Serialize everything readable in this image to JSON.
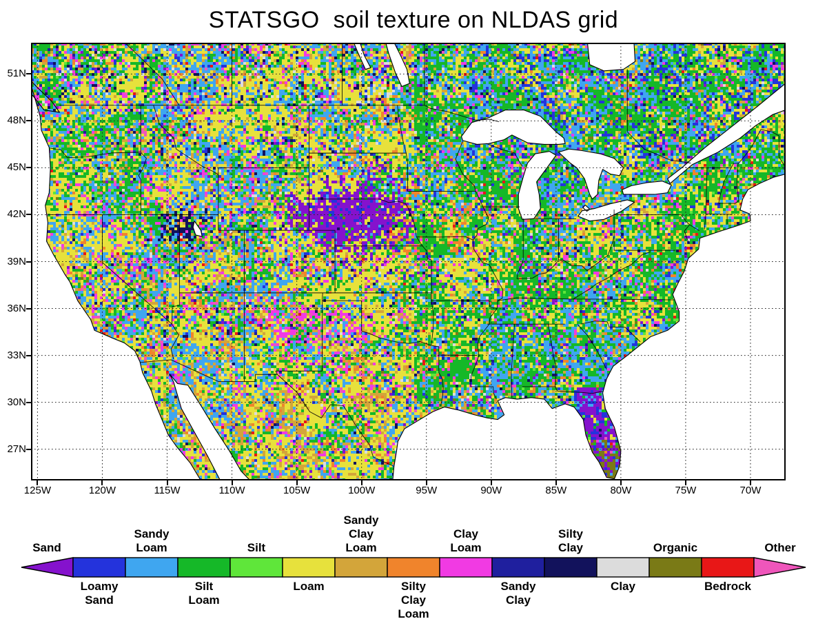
{
  "title": "STATSGO  soil texture on NLDAS grid",
  "axes": {
    "lat_ticks": [
      {
        "label": "51N",
        "value": 51
      },
      {
        "label": "48N",
        "value": 48
      },
      {
        "label": "45N",
        "value": 45
      },
      {
        "label": "42N",
        "value": 42
      },
      {
        "label": "39N",
        "value": 39
      },
      {
        "label": "36N",
        "value": 36
      },
      {
        "label": "33N",
        "value": 33
      },
      {
        "label": "30N",
        "value": 30
      },
      {
        "label": "27N",
        "value": 27
      }
    ],
    "lon_ticks": [
      {
        "label": "125W",
        "value": -125
      },
      {
        "label": "120W",
        "value": -120
      },
      {
        "label": "115W",
        "value": -115
      },
      {
        "label": "110W",
        "value": -110
      },
      {
        "label": "105W",
        "value": -105
      },
      {
        "label": "100W",
        "value": -100
      },
      {
        "label": "95W",
        "value": -95
      },
      {
        "label": "90W",
        "value": -90
      },
      {
        "label": "85W",
        "value": -85
      },
      {
        "label": "80W",
        "value": -80
      },
      {
        "label": "75W",
        "value": -75
      },
      {
        "label": "70W",
        "value": -70
      }
    ]
  },
  "legend": {
    "categories": [
      {
        "name": "sand",
        "label": "Sand",
        "side": "above",
        "color": "#8512cd",
        "shape": "arrow-left"
      },
      {
        "name": "loamy-sand",
        "label": "Loamy\nSand",
        "side": "below",
        "color": "#2433dc",
        "shape": "rect"
      },
      {
        "name": "sandy-loam",
        "label": "Sandy\nLoam",
        "side": "above",
        "color": "#3fa6f0",
        "shape": "rect"
      },
      {
        "name": "silt-loam",
        "label": "Silt\nLoam",
        "side": "below",
        "color": "#15b828",
        "shape": "rect"
      },
      {
        "name": "silt",
        "label": "Silt",
        "side": "above",
        "color": "#5fe63a",
        "shape": "rect"
      },
      {
        "name": "loam",
        "label": "Loam",
        "side": "below",
        "color": "#e7e13c",
        "shape": "rect"
      },
      {
        "name": "sandy-clay-loam",
        "label": "Sandy\nClay\nLoam",
        "side": "above",
        "color": "#d3a53a",
        "shape": "rect"
      },
      {
        "name": "silty-clay-loam",
        "label": "Silty\nClay\nLoam",
        "side": "below",
        "color": "#f0842c",
        "shape": "rect"
      },
      {
        "name": "clay-loam",
        "label": "Clay\nLoam",
        "side": "above",
        "color": "#f13ae3",
        "shape": "rect"
      },
      {
        "name": "sandy-clay",
        "label": "Sandy\nClay",
        "side": "below",
        "color": "#1f1f9e",
        "shape": "rect"
      },
      {
        "name": "silty-clay",
        "label": "Silty\nClay",
        "side": "above",
        "color": "#12125c",
        "shape": "rect"
      },
      {
        "name": "clay",
        "label": "Clay",
        "side": "below",
        "color": "#dcdcdc",
        "shape": "rect"
      },
      {
        "name": "organic",
        "label": "Organic",
        "side": "above",
        "color": "#7a7a16",
        "shape": "rect"
      },
      {
        "name": "bedrock",
        "label": "Bedrock",
        "side": "below",
        "color": "#e81717",
        "shape": "rect"
      },
      {
        "name": "other",
        "label": "Other",
        "side": "above",
        "color": "#ef56bb",
        "shape": "arrow-right"
      }
    ]
  },
  "chart_data": {
    "type": "heatmap",
    "subtype": "categorical-soil-texture-map",
    "title": "STATSGO  soil texture on NLDAS grid",
    "categories": [
      "Sand",
      "Loamy Sand",
      "Sandy Loam",
      "Silt Loam",
      "Silt",
      "Loam",
      "Sandy Clay Loam",
      "Silty Clay Loam",
      "Clay Loam",
      "Sandy Clay",
      "Silty Clay",
      "Clay",
      "Organic",
      "Bedrock",
      "Other"
    ],
    "lat_tick_labels": [
      "51N",
      "48N",
      "45N",
      "42N",
      "39N",
      "36N",
      "33N",
      "30N",
      "27N"
    ],
    "lon_tick_labels": [
      "125W",
      "120W",
      "115W",
      "110W",
      "105W",
      "100W",
      "95W",
      "90W",
      "85W",
      "80W",
      "75W",
      "70W"
    ],
    "legend_position": "bottom",
    "grid": "dotted"
  }
}
